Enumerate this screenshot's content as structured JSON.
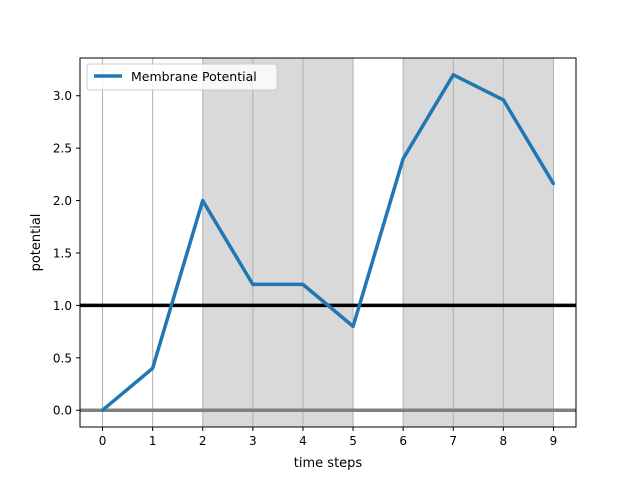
{
  "chart_data": {
    "type": "line",
    "title": "",
    "xlabel": "time steps",
    "ylabel": "potential",
    "xlim": [
      -0.45,
      9.45
    ],
    "ylim": [
      -0.16,
      3.36
    ],
    "x_ticks": [
      0,
      1,
      2,
      3,
      4,
      5,
      6,
      7,
      8,
      9
    ],
    "x_tick_labels": [
      "0",
      "1",
      "2",
      "3",
      "4",
      "5",
      "6",
      "7",
      "8",
      "9"
    ],
    "y_ticks": [
      0.0,
      0.5,
      1.0,
      1.5,
      2.0,
      2.5,
      3.0
    ],
    "y_tick_labels": [
      "0.0",
      "0.5",
      "1.0",
      "1.5",
      "2.0",
      "2.5",
      "3.0"
    ],
    "series": [
      {
        "name": "Membrane Potential",
        "color": "#1f77b4",
        "x": [
          0,
          1,
          2,
          3,
          4,
          5,
          6,
          7,
          8,
          9
        ],
        "values": [
          0.0,
          0.4,
          2.0,
          1.2,
          1.2,
          0.8,
          2.4,
          3.2,
          2.96,
          2.16
        ]
      }
    ],
    "threshold_line": {
      "y": 1.0,
      "color": "#000000"
    },
    "baseline_line": {
      "y": 0.0,
      "color": "#808080"
    },
    "shaded_spans": [
      {
        "from": 2,
        "to": 5,
        "color": "#d9d9d9"
      },
      {
        "from": 6,
        "to": 9,
        "color": "#d9d9d9"
      }
    ],
    "vertical_gridlines": [
      0,
      1,
      2,
      3,
      4,
      5,
      6,
      7,
      8,
      9
    ],
    "grid": "vertical lines at integer time steps",
    "legend_position": "top-left"
  }
}
